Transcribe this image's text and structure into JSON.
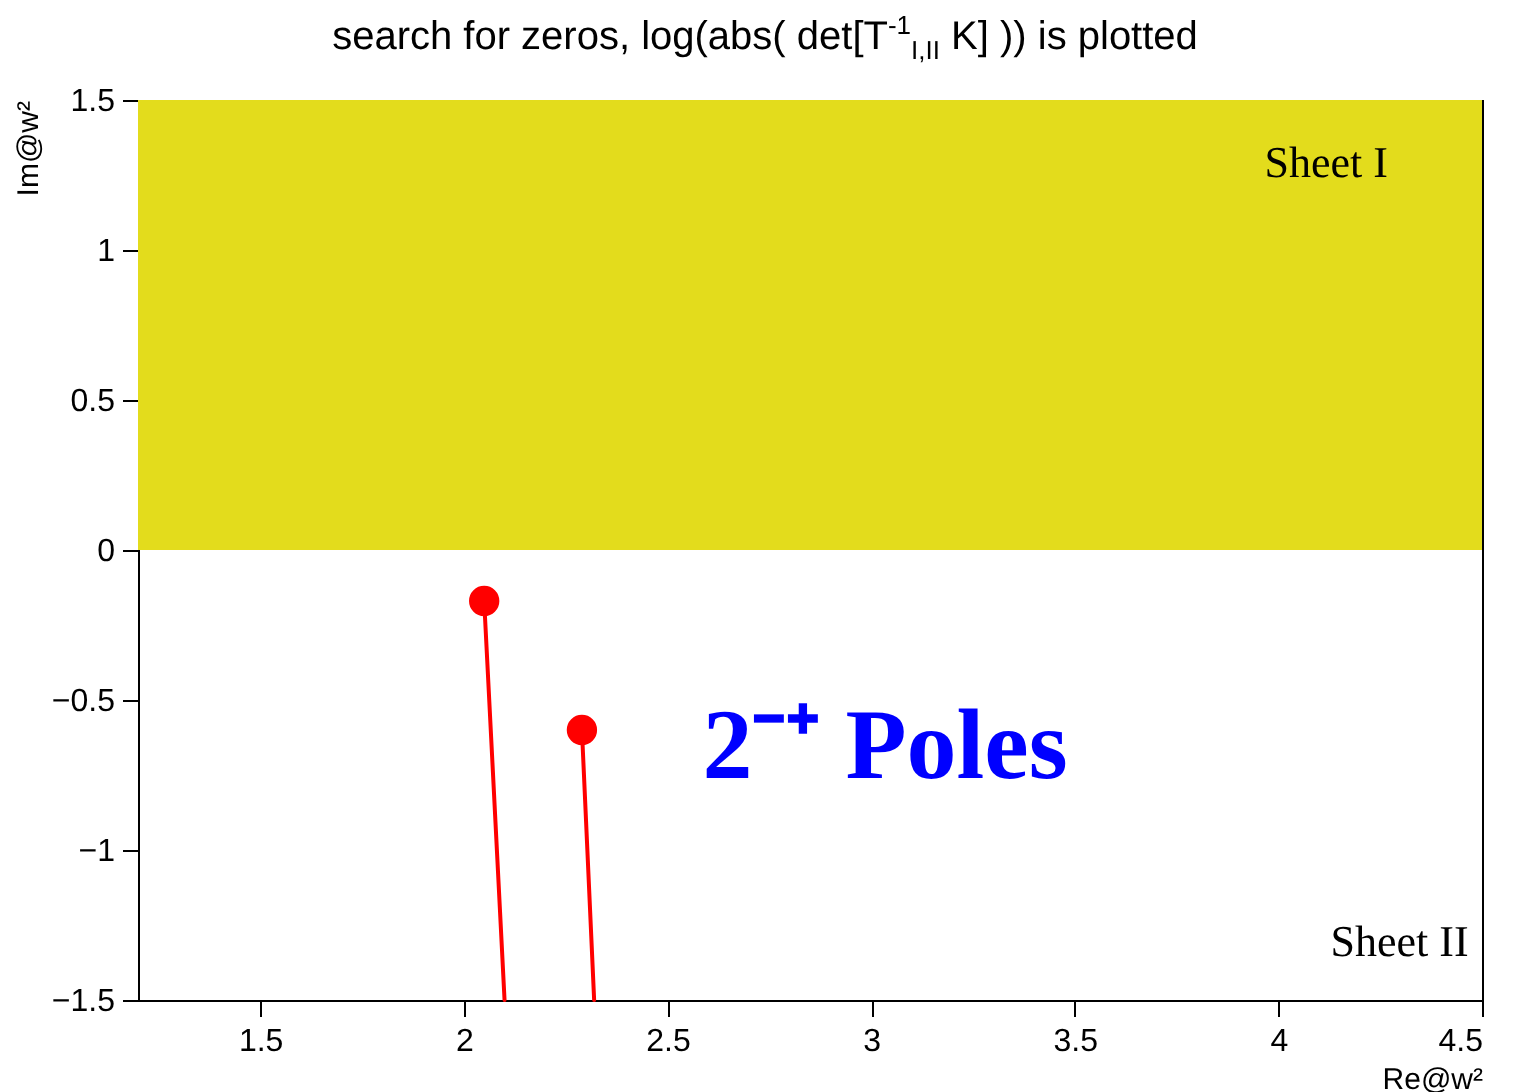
{
  "chart_data": {
    "type": "line",
    "title": "search for zeros, log(abs( det[T$^{-1}$$_{I,II}$ K] )) is plotted",
    "xlabel": "Re@w²",
    "ylabel": "Im@w²",
    "xlim": [
      1.2,
      4.5
    ],
    "xticks": [
      1.5,
      2,
      2.5,
      3,
      3.5,
      4,
      4.5
    ],
    "ylim": [
      -1.5,
      1.5
    ],
    "yticks": [
      {
        "value": -1.5,
        "label": "−1.5"
      },
      {
        "value": -1,
        "label": "−1"
      },
      {
        "value": -0.5,
        "label": "−0.5"
      },
      0,
      0.5,
      1,
      1.5
    ],
    "series": [
      {
        "color": "#ff0000",
        "x": [
          2.05,
          2.1
        ],
        "values": [
          -0.17,
          -1.5
        ]
      },
      {
        "color": "#ff0000",
        "x": [
          2.29,
          2.32
        ],
        "values": [
          -0.6,
          -1.5
        ]
      },
      {
        "type": "scatter",
        "color": "#ff0000",
        "x": [
          2.05,
          2.29
        ],
        "values": [
          -0.17,
          -0.6
        ]
      }
    ],
    "bands": [
      {
        "axis": "y",
        "from": 0,
        "to": 1.5,
        "color": "#e3dc1c"
      }
    ],
    "annotations": [
      "Sheet I",
      "Sheet II",
      "2⁻⁺ Poles"
    ],
    "grid": false
  }
}
